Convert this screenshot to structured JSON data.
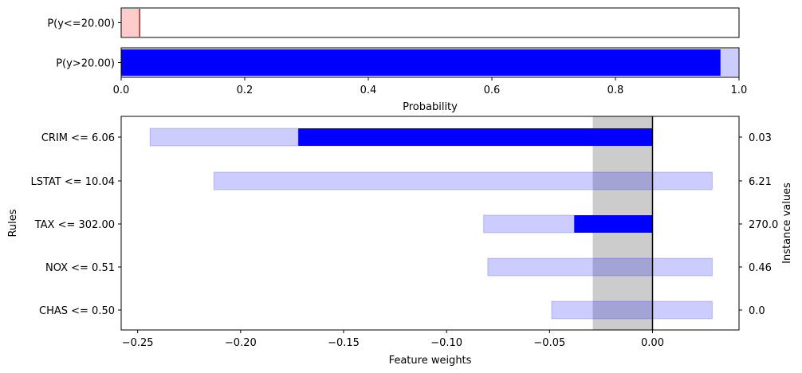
{
  "chart_data": [
    {
      "type": "bar",
      "orientation": "horizontal",
      "categories": [
        "P(y<=20.00)",
        "P(y>20.00)"
      ],
      "series": [
        {
          "values": [
            0.03,
            0.97
          ],
          "colors": [
            "#ff0000",
            "#0000ff"
          ]
        }
      ],
      "intervals": [
        {
          "low": 0.0,
          "high": 0.03
        },
        {
          "low": 0.0,
          "high": 1.0
        }
      ],
      "xlabel": "Probability",
      "xlim": [
        0,
        1
      ],
      "xticks": [
        "0.0",
        "0.2",
        "0.4",
        "0.6",
        "0.8",
        "1.0"
      ],
      "grid": false
    },
    {
      "type": "bar",
      "orientation": "horizontal",
      "categories": [
        "CRIM <= 6.06",
        "LSTAT <= 10.04",
        "TAX <= 302.00",
        "NOX <= 0.51",
        "CHAS <= 0.50"
      ],
      "instance_values": [
        "0.03",
        "6.21",
        "270.0",
        "0.46",
        "0.0"
      ],
      "series": [
        {
          "values": [
            -0.172,
            0.0,
            -0.038,
            0.0,
            0.0
          ],
          "color": "#0000ff"
        }
      ],
      "uncertainty_intervals": [
        {
          "low": -0.244,
          "high": -0.172
        },
        {
          "low": -0.213,
          "high": 0.029
        },
        {
          "low": -0.082,
          "high": -0.038
        },
        {
          "low": -0.08,
          "high": 0.029
        },
        {
          "low": -0.049,
          "high": 0.029
        }
      ],
      "baseline_band": {
        "low": -0.029,
        "high": 0.0
      },
      "xlabel": "Feature weights",
      "ylabel": "Rules",
      "y2label": "Instance values",
      "xlim": [
        -0.258,
        0.042
      ],
      "xticks": [
        -0.25,
        -0.2,
        -0.15,
        -0.1,
        -0.05,
        0.0
      ],
      "xtick_labels": [
        "−0.25",
        "−0.20",
        "−0.15",
        "−0.10",
        "−0.05",
        "0.00"
      ],
      "grid": false
    }
  ]
}
